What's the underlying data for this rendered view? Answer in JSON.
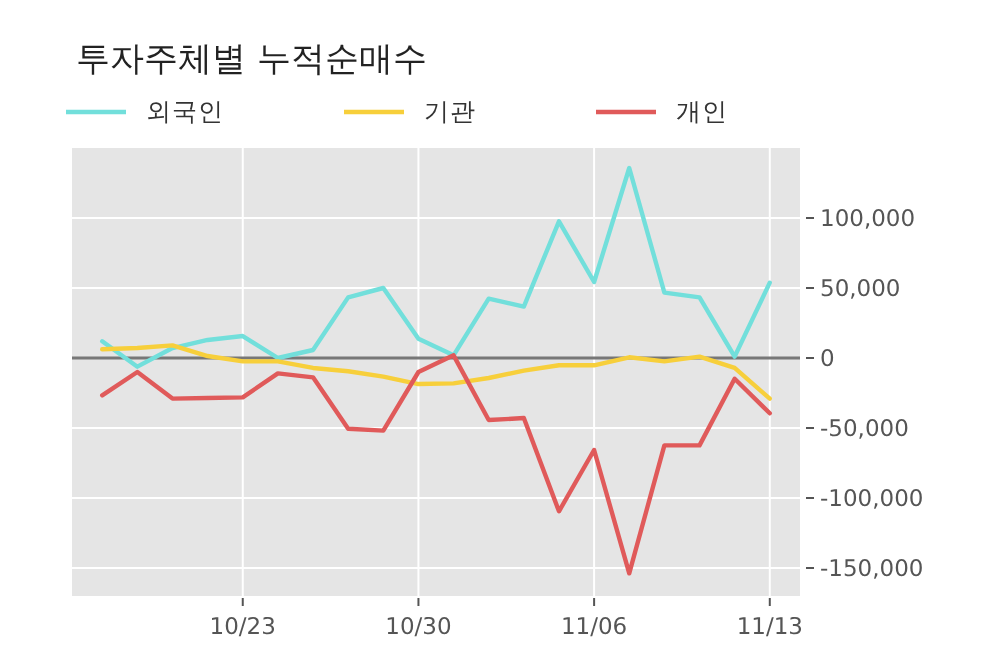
{
  "chart_data": {
    "type": "line",
    "title": "투자주체별 누적순매수",
    "categories": [
      null,
      null,
      null,
      null,
      "10/23",
      null,
      null,
      null,
      null,
      "10/30",
      null,
      null,
      null,
      null,
      "11/06",
      null,
      null,
      null,
      null,
      "11/13"
    ],
    "series": [
      {
        "name": "외국인",
        "color": "#72dfdb",
        "values": [
          11900,
          -6200,
          7100,
          12900,
          15700,
          0,
          5700,
          43300,
          50000,
          13800,
          1900,
          42400,
          36700,
          97600,
          54300,
          135700,
          46700,
          43300,
          1000,
          53800
        ]
      },
      {
        "name": "기관",
        "color": "#f7cf3b",
        "values": [
          6200,
          7100,
          9000,
          1400,
          -2400,
          -2400,
          -7100,
          -9500,
          -13300,
          -18600,
          -18100,
          -14300,
          -9000,
          -5200,
          -5200,
          500,
          -2400,
          1000,
          -7100,
          -29000
        ]
      },
      {
        "name": "개인",
        "color": "#e05a5a",
        "values": [
          -26700,
          -10000,
          -29000,
          -28600,
          -28100,
          -11000,
          -13800,
          -50500,
          -51900,
          -10000,
          1900,
          -44300,
          -42900,
          -109500,
          -65700,
          -153800,
          -62400,
          -62400,
          -14800,
          -39500
        ]
      }
    ],
    "ylim": [
      -170000,
      150000
    ],
    "yticks": [
      {
        "value": -150000,
        "label": "-150,000"
      },
      {
        "value": -100000,
        "label": "-100,000"
      },
      {
        "value": -50000,
        "label": "-50,000"
      },
      0,
      {
        "value": 50000,
        "label": "50,000"
      },
      {
        "value": 100000,
        "label": "100,000"
      }
    ],
    "ref_lines": [
      {
        "axis": "y",
        "value": 0,
        "color": "#777777"
      }
    ],
    "grid": true,
    "legend": "top left",
    "line_style": "solid",
    "marker": "none"
  }
}
